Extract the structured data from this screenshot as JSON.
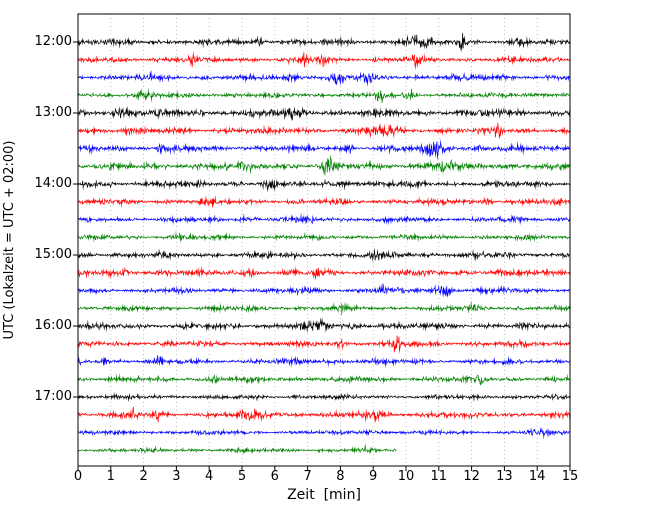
{
  "figure": {
    "background": "#ffffff"
  },
  "chart_data": {
    "type": "line",
    "subtype": "seismogram-dayplot",
    "title": "",
    "xlabel": "Zeit  [min]",
    "ylabel": "UTC (Lokalzeit = UTC + 02:00)",
    "xlim": [
      0,
      15
    ],
    "minutes_per_line": 15,
    "grid": "vertical-dotted",
    "grid_color": "#b0b0b0",
    "x_ticks": [
      "0",
      "1",
      "2",
      "3",
      "4",
      "5",
      "6",
      "7",
      "8",
      "9",
      "10",
      "11",
      "12",
      "13",
      "14",
      "15"
    ],
    "y_tick_labels": [
      "12:00",
      "13:00",
      "14:00",
      "15:00",
      "16:00",
      "17:00"
    ],
    "color_cycle": [
      "#000000",
      "#ff0000",
      "#0000ff",
      "#008000"
    ],
    "traces": [
      {
        "time": "12:00",
        "color": "#000000",
        "base_amp": 1.6,
        "end_min": 15,
        "events": [
          {
            "x": 5.5,
            "w": 0.12,
            "a": 2.2
          },
          {
            "x": 8.3,
            "w": 0.1,
            "a": 1.2
          },
          {
            "x": 10.2,
            "w": 0.5,
            "a": 1.6
          },
          {
            "x": 11.7,
            "w": 0.1,
            "a": 2.8
          },
          {
            "x": 13.4,
            "w": 0.25,
            "a": 0.9
          }
        ]
      },
      {
        "time": "12:15",
        "color": "#ff0000",
        "base_amp": 1.5,
        "end_min": 15,
        "events": [
          {
            "x": 3.5,
            "w": 0.1,
            "a": 1.3
          },
          {
            "x": 6.9,
            "w": 0.1,
            "a": 2.6
          },
          {
            "x": 7.5,
            "w": 0.18,
            "a": 1.8
          },
          {
            "x": 10.3,
            "w": 0.1,
            "a": 2.3
          }
        ]
      },
      {
        "time": "12:30",
        "color": "#0000ff",
        "base_amp": 1.7,
        "end_min": 15,
        "events": [
          {
            "x": 6.6,
            "w": 0.2,
            "a": 1.2
          },
          {
            "x": 7.9,
            "w": 0.22,
            "a": 1.7
          },
          {
            "x": 8.8,
            "w": 0.15,
            "a": 1.2
          }
        ]
      },
      {
        "time": "12:45",
        "color": "#008000",
        "base_amp": 1.5,
        "end_min": 15,
        "events": [
          {
            "x": 2.0,
            "w": 0.3,
            "a": 0.7
          },
          {
            "x": 9.2,
            "w": 0.13,
            "a": 2.3
          },
          {
            "x": 10.2,
            "w": 0.12,
            "a": 2.0
          }
        ]
      },
      {
        "time": "13:00",
        "color": "#000000",
        "base_amp": 2.1,
        "end_min": 15,
        "events": [
          {
            "x": 1.4,
            "w": 0.3,
            "a": 1.2
          },
          {
            "x": 6.6,
            "w": 0.25,
            "a": 0.8
          }
        ]
      },
      {
        "time": "13:15",
        "color": "#ff0000",
        "base_amp": 1.8,
        "end_min": 15,
        "events": [
          {
            "x": 1.5,
            "w": 0.1,
            "a": 1.6
          },
          {
            "x": 9.3,
            "w": 0.4,
            "a": 1.5
          },
          {
            "x": 12.8,
            "w": 0.13,
            "a": 2.0
          }
        ]
      },
      {
        "time": "13:30",
        "color": "#0000ff",
        "base_amp": 1.7,
        "end_min": 15,
        "events": [
          {
            "x": 2.5,
            "w": 0.1,
            "a": 2.0
          },
          {
            "x": 8.3,
            "w": 0.2,
            "a": 1.6
          },
          {
            "x": 11.0,
            "w": 0.4,
            "a": 3.0
          },
          {
            "x": 12.2,
            "w": 0.1,
            "a": 1.3
          }
        ]
      },
      {
        "time": "13:45",
        "color": "#008000",
        "base_amp": 2.0,
        "end_min": 15,
        "events": [
          {
            "x": 5.0,
            "w": 0.3,
            "a": 0.7
          },
          {
            "x": 7.6,
            "w": 0.2,
            "a": 2.0
          },
          {
            "x": 11.1,
            "w": 0.3,
            "a": 1.3
          }
        ]
      },
      {
        "time": "14:00",
        "color": "#000000",
        "base_amp": 1.8,
        "end_min": 15,
        "events": [
          {
            "x": 2.7,
            "w": 0.1,
            "a": 0.9
          },
          {
            "x": 5.8,
            "w": 0.22,
            "a": 2.0
          },
          {
            "x": 8.1,
            "w": 0.2,
            "a": 1.6
          }
        ]
      },
      {
        "time": "14:15",
        "color": "#ff0000",
        "base_amp": 1.6,
        "end_min": 15,
        "events": [
          {
            "x": 4.0,
            "w": 0.2,
            "a": 0.7
          },
          {
            "x": 12.5,
            "w": 0.14,
            "a": 2.4
          }
        ]
      },
      {
        "time": "14:30",
        "color": "#0000ff",
        "base_amp": 1.5,
        "end_min": 15,
        "events": [
          {
            "x": 5.0,
            "w": 0.2,
            "a": 1.0
          },
          {
            "x": 7.0,
            "w": 0.2,
            "a": 0.9
          }
        ]
      },
      {
        "time": "14:45",
        "color": "#008000",
        "base_amp": 1.4,
        "end_min": 15,
        "events": [
          {
            "x": 3.0,
            "w": 0.3,
            "a": 0.5
          }
        ]
      },
      {
        "time": "15:00",
        "color": "#000000",
        "base_amp": 1.7,
        "end_min": 15,
        "events": [
          {
            "x": 9.0,
            "w": 0.25,
            "a": 0.7
          }
        ]
      },
      {
        "time": "15:15",
        "color": "#ff0000",
        "base_amp": 1.8,
        "end_min": 15,
        "events": [
          {
            "x": 1.5,
            "w": 0.11,
            "a": 2.2
          },
          {
            "x": 5.2,
            "w": 0.22,
            "a": 1.2
          },
          {
            "x": 7.3,
            "w": 0.18,
            "a": 1.4
          }
        ]
      },
      {
        "time": "15:30",
        "color": "#0000ff",
        "base_amp": 1.5,
        "end_min": 15,
        "events": [
          {
            "x": 6.8,
            "w": 0.2,
            "a": 0.9
          },
          {
            "x": 9.3,
            "w": 0.11,
            "a": 2.2
          },
          {
            "x": 11.1,
            "w": 0.28,
            "a": 2.6
          }
        ]
      },
      {
        "time": "15:45",
        "color": "#008000",
        "base_amp": 1.4,
        "end_min": 15,
        "events": [
          {
            "x": 8.0,
            "w": 0.3,
            "a": 0.7
          },
          {
            "x": 12.0,
            "w": 0.2,
            "a": 0.7
          }
        ]
      },
      {
        "time": "16:00",
        "color": "#000000",
        "base_amp": 1.7,
        "end_min": 15,
        "events": [
          {
            "x": 7.5,
            "w": 1.0,
            "a": 0.6
          },
          {
            "x": 9.3,
            "w": 0.2,
            "a": 1.0
          }
        ]
      },
      {
        "time": "16:15",
        "color": "#ff0000",
        "base_amp": 1.6,
        "end_min": 15,
        "events": [
          {
            "x": 8.0,
            "w": 0.14,
            "a": 1.3
          },
          {
            "x": 9.7,
            "w": 0.13,
            "a": 3.2
          }
        ]
      },
      {
        "time": "16:30",
        "color": "#0000ff",
        "base_amp": 1.5,
        "end_min": 15,
        "events": [
          {
            "x": 0.8,
            "w": 0.1,
            "a": 2.0
          },
          {
            "x": 2.5,
            "w": 0.11,
            "a": 1.6
          },
          {
            "x": 7.5,
            "w": 0.8,
            "a": 0.7
          }
        ]
      },
      {
        "time": "16:45",
        "color": "#008000",
        "base_amp": 1.5,
        "end_min": 15,
        "events": [
          {
            "x": 4.2,
            "w": 0.2,
            "a": 1.1
          },
          {
            "x": 12.3,
            "w": 0.13,
            "a": 1.6
          }
        ]
      },
      {
        "time": "17:00",
        "color": "#000000",
        "base_amp": 1.3,
        "end_min": 15,
        "events": [
          {
            "x": 7.0,
            "w": 0.3,
            "a": 0.4
          }
        ]
      },
      {
        "time": "17:15",
        "color": "#ff0000",
        "base_amp": 1.6,
        "end_min": 15,
        "events": [
          {
            "x": 1.7,
            "w": 0.11,
            "a": 2.4
          },
          {
            "x": 2.4,
            "w": 0.1,
            "a": 1.8
          },
          {
            "x": 5.5,
            "w": 0.6,
            "a": 0.9
          },
          {
            "x": 9.0,
            "w": 0.5,
            "a": 1.1
          }
        ]
      },
      {
        "time": "17:30",
        "color": "#0000ff",
        "base_amp": 1.2,
        "end_min": 15,
        "events": [
          {
            "x": 8.8,
            "w": 0.2,
            "a": 1.3
          },
          {
            "x": 13.8,
            "w": 0.13,
            "a": 2.4
          },
          {
            "x": 14.2,
            "w": 0.1,
            "a": 1.6
          }
        ]
      },
      {
        "time": "17:45",
        "color": "#008000",
        "base_amp": 1.2,
        "end_min": 9.7,
        "events": [
          {
            "x": 8.7,
            "w": 0.3,
            "a": 0.7
          }
        ]
      }
    ]
  }
}
